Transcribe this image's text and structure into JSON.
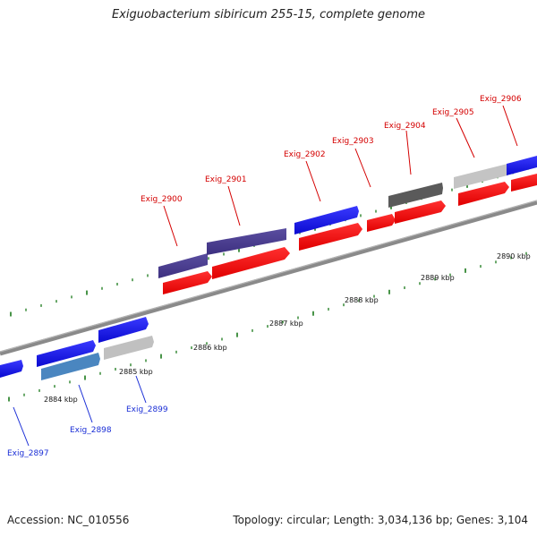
{
  "header": {
    "title": "Exiguobacterium sibiricum 255-15, complete genome"
  },
  "footer": {
    "accession": "Accession: NC_010556",
    "summary": "Topology: circular; Length: 3,034,136 bp; Genes: 3,104"
  },
  "scale_labels": [
    "2884 kbp",
    "2885 kbp",
    "2886 kbp",
    "2887 kbp",
    "2888 kbp",
    "2889 kbp",
    "2890 kbp"
  ],
  "genes_top": [
    "Exig_2900",
    "Exig_2901",
    "Exig_2902",
    "Exig_2903",
    "Exig_2904",
    "Exig_2905",
    "Exig_2906"
  ],
  "genes_bottom": [
    "Exig_2897",
    "Exig_2898",
    "Exig_2899"
  ],
  "colors": {
    "top_strand_label": "#d40000",
    "bottom_strand_label": "#1a2ed6",
    "cds_red": "#ff1010",
    "cds_blue": "#1818e8",
    "cds_purple": "#4b3d8f",
    "cds_steelblue": "#4a86c0",
    "cds_gray": "#c0c0c0",
    "cds_darkgray": "#5a5a5a",
    "backbone": "#8a8a8a",
    "tick_green": "#1a7a1a"
  }
}
